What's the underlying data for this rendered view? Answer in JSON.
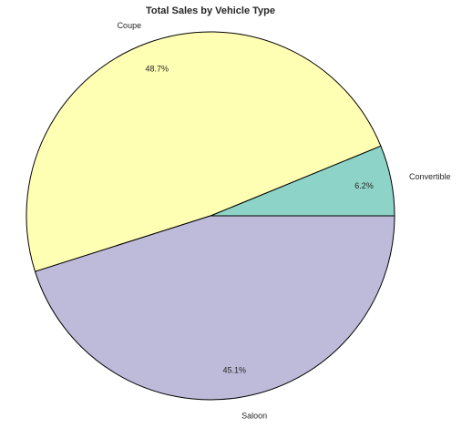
{
  "chart_data": {
    "type": "pie",
    "title": "Total Sales by Vehicle Type",
    "categories": [
      "Convertible",
      "Coupe",
      "Saloon"
    ],
    "values": [
      6.2,
      48.7,
      45.1
    ],
    "value_labels": [
      "6.2%",
      "48.7%",
      "45.1%"
    ],
    "colors": [
      "#8dd3c7",
      "#ffffb3",
      "#bebada"
    ],
    "start_angle": "0 degrees (3 o'clock), counter-clockwise",
    "edge_color": "#000000",
    "legend": "none"
  }
}
